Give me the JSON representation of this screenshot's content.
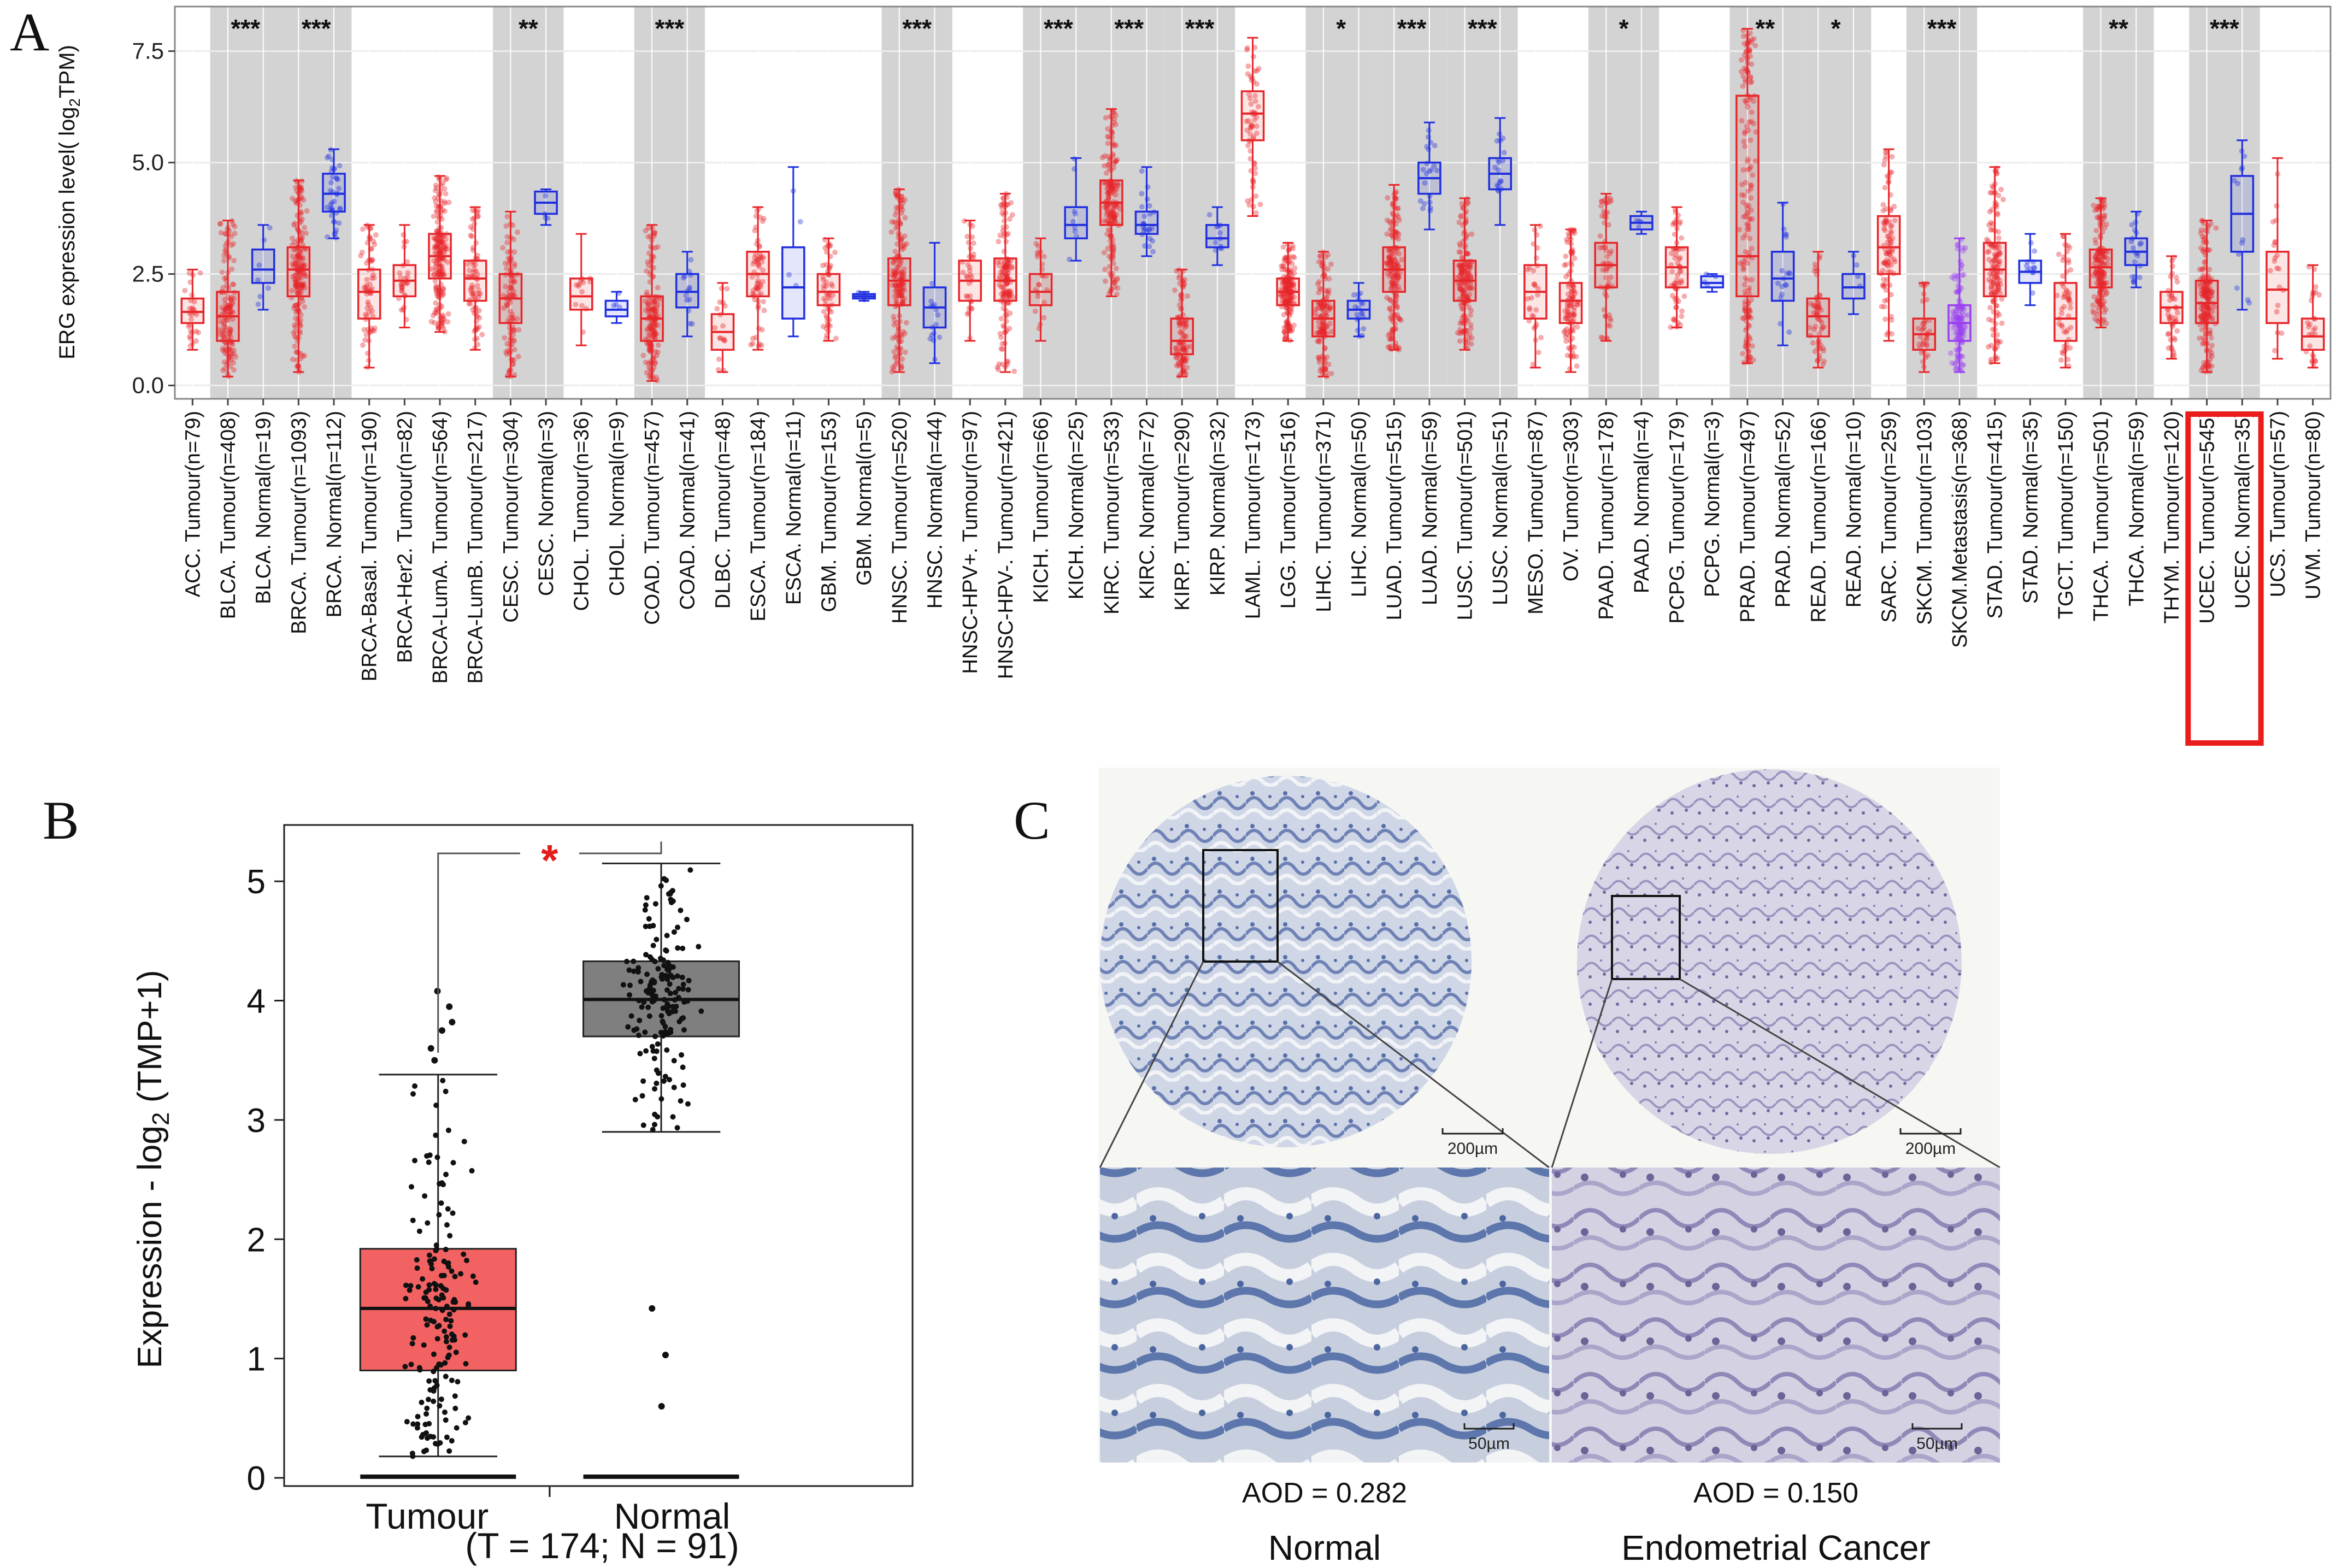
{
  "panel_labels": [
    "A",
    "B",
    "C"
  ],
  "chart_data": [
    {
      "type": "box",
      "panel": "A",
      "ylabel": "ERG expression level( log2TPM)",
      "ylabel_parts": {
        "pre": "ERG expression level( log",
        "sub": "2",
        "post": "TPM)"
      },
      "ylim": [
        -0.3,
        8.5
      ],
      "yticks": [
        0.0,
        2.5,
        5.0,
        7.5
      ],
      "ytick_labels": [
        "0.0",
        "2.5",
        "5.0",
        "7.5"
      ],
      "grid": true,
      "highlight_box": [
        "UCEC. Tumour(n=545)",
        "UCEC. Normal(n=35)"
      ],
      "groups": [
        {
          "shaded": false,
          "sig": ""
        },
        {
          "shaded": true,
          "sig": "***"
        },
        {
          "shaded": true,
          "sig": "***"
        },
        {
          "shaded": false,
          "sig": ""
        },
        {
          "shaded": true,
          "sig": "**"
        },
        {
          "shaded": false,
          "sig": ""
        },
        {
          "shaded": true,
          "sig": "***"
        },
        {
          "shaded": false,
          "sig": ""
        },
        {
          "shaded": false,
          "sig": ""
        },
        {
          "shaded": false,
          "sig": ""
        },
        {
          "shaded": true,
          "sig": "***"
        },
        {
          "shaded": false,
          "sig": ""
        },
        {
          "shaded": true,
          "sig": "***"
        },
        {
          "shaded": true,
          "sig": "***"
        },
        {
          "shaded": true,
          "sig": "***"
        },
        {
          "shaded": false,
          "sig": ""
        },
        {
          "shaded": false,
          "sig": ""
        },
        {
          "shaded": true,
          "sig": "*"
        },
        {
          "shaded": true,
          "sig": "***"
        },
        {
          "shaded": true,
          "sig": "***"
        },
        {
          "shaded": false,
          "sig": ""
        },
        {
          "shaded": false,
          "sig": ""
        },
        {
          "shaded": true,
          "sig": "*"
        },
        {
          "shaded": false,
          "sig": ""
        },
        {
          "shaded": true,
          "sig": "**"
        },
        {
          "shaded": true,
          "sig": "*"
        },
        {
          "shaded": false,
          "sig": ""
        },
        {
          "shaded": true,
          "sig": "***"
        },
        {
          "shaded": false,
          "sig": ""
        },
        {
          "shaded": false,
          "sig": ""
        },
        {
          "shaded": true,
          "sig": "**"
        },
        {
          "shaded": false,
          "sig": ""
        },
        {
          "shaded": true,
          "sig": "***"
        },
        {
          "shaded": false,
          "sig": ""
        },
        {
          "shaded": false,
          "sig": ""
        }
      ],
      "categories": [
        {
          "label": "ACC. Tumour(n=79)",
          "group": 0,
          "type": "tumour",
          "q1": 1.4,
          "median": 1.65,
          "q3": 1.95,
          "min": 0.8,
          "max": 2.6
        },
        {
          "label": "BLCA. Tumour(n=408)",
          "group": 1,
          "type": "tumour",
          "q1": 1.0,
          "median": 1.55,
          "q3": 2.1,
          "min": 0.2,
          "max": 3.7
        },
        {
          "label": "BLCA. Normal(n=19)",
          "group": 1,
          "type": "normal",
          "q1": 2.3,
          "median": 2.6,
          "q3": 3.05,
          "min": 1.7,
          "max": 3.6
        },
        {
          "label": "BRCA. Tumour(n=1093)",
          "group": 2,
          "type": "tumour",
          "q1": 2.0,
          "median": 2.6,
          "q3": 3.1,
          "min": 0.3,
          "max": 4.6
        },
        {
          "label": "BRCA. Normal(n=112)",
          "group": 2,
          "type": "normal",
          "q1": 3.9,
          "median": 4.3,
          "q3": 4.75,
          "min": 3.3,
          "max": 5.3
        },
        {
          "label": "BRCA-Basal. Tumour(n=190)",
          "group": 3,
          "type": "tumour",
          "q1": 1.5,
          "median": 2.1,
          "q3": 2.6,
          "min": 0.4,
          "max": 3.6
        },
        {
          "label": "BRCA-Her2. Tumour(n=82)",
          "group": 3,
          "type": "tumour",
          "q1": 2.0,
          "median": 2.35,
          "q3": 2.7,
          "min": 1.3,
          "max": 3.6
        },
        {
          "label": "BRCA-LumA. Tumour(n=564)",
          "group": 3,
          "type": "tumour",
          "q1": 2.4,
          "median": 2.9,
          "q3": 3.4,
          "min": 1.2,
          "max": 4.7
        },
        {
          "label": "BRCA-LumB. Tumour(n=217)",
          "group": 3,
          "type": "tumour",
          "q1": 1.9,
          "median": 2.4,
          "q3": 2.8,
          "min": 0.8,
          "max": 4.0
        },
        {
          "label": "CESC. Tumour(n=304)",
          "group": 4,
          "type": "tumour",
          "q1": 1.4,
          "median": 1.95,
          "q3": 2.5,
          "min": 0.2,
          "max": 3.9
        },
        {
          "label": "CESC. Normal(n=3)",
          "group": 4,
          "type": "normal",
          "q1": 3.85,
          "median": 4.1,
          "q3": 4.35,
          "min": 3.6,
          "max": 4.4
        },
        {
          "label": "CHOL. Tumour(n=36)",
          "group": 5,
          "type": "tumour",
          "q1": 1.7,
          "median": 2.0,
          "q3": 2.4,
          "min": 0.9,
          "max": 3.4
        },
        {
          "label": "CHOL. Normal(n=9)",
          "group": 5,
          "type": "normal",
          "q1": 1.55,
          "median": 1.7,
          "q3": 1.9,
          "min": 1.4,
          "max": 2.1
        },
        {
          "label": "COAD. Tumour(n=457)",
          "group": 6,
          "type": "tumour",
          "q1": 1.0,
          "median": 1.5,
          "q3": 2.0,
          "min": 0.1,
          "max": 3.6
        },
        {
          "label": "COAD. Normal(n=41)",
          "group": 6,
          "type": "normal",
          "q1": 1.75,
          "median": 2.1,
          "q3": 2.5,
          "min": 1.1,
          "max": 3.0
        },
        {
          "label": "DLBC. Tumour(n=48)",
          "group": 7,
          "type": "tumour",
          "q1": 0.8,
          "median": 1.2,
          "q3": 1.6,
          "min": 0.3,
          "max": 2.3
        },
        {
          "label": "ESCA. Tumour(n=184)",
          "group": 8,
          "type": "tumour",
          "q1": 2.0,
          "median": 2.5,
          "q3": 3.0,
          "min": 0.8,
          "max": 4.0
        },
        {
          "label": "ESCA. Normal(n=11)",
          "group": 8,
          "type": "normal",
          "q1": 1.5,
          "median": 2.2,
          "q3": 3.1,
          "min": 1.1,
          "max": 4.9
        },
        {
          "label": "GBM. Tumour(n=153)",
          "group": 9,
          "type": "tumour",
          "q1": 1.8,
          "median": 2.1,
          "q3": 2.5,
          "min": 1.0,
          "max": 3.3
        },
        {
          "label": "GBM. Normal(n=5)",
          "group": 9,
          "type": "normal",
          "q1": 1.95,
          "median": 2.0,
          "q3": 2.05,
          "min": 1.9,
          "max": 2.1
        },
        {
          "label": "HNSC. Tumour(n=520)",
          "group": 10,
          "type": "tumour",
          "q1": 1.8,
          "median": 2.35,
          "q3": 2.85,
          "min": 0.3,
          "max": 4.4
        },
        {
          "label": "HNSC. Normal(n=44)",
          "group": 10,
          "type": "normal",
          "q1": 1.3,
          "median": 1.75,
          "q3": 2.2,
          "min": 0.5,
          "max": 3.2
        },
        {
          "label": "HNSC-HPV+. Tumour(n=97)",
          "group": 11,
          "type": "tumour",
          "q1": 1.9,
          "median": 2.35,
          "q3": 2.8,
          "min": 1.0,
          "max": 3.7
        },
        {
          "label": "HNSC-HPV-. Tumour(n=421)",
          "group": 11,
          "type": "tumour",
          "q1": 1.9,
          "median": 2.35,
          "q3": 2.85,
          "min": 0.3,
          "max": 4.3
        },
        {
          "label": "KICH. Tumour(n=66)",
          "group": 12,
          "type": "tumour",
          "q1": 1.8,
          "median": 2.1,
          "q3": 2.5,
          "min": 1.0,
          "max": 3.3
        },
        {
          "label": "KICH. Normal(n=25)",
          "group": 12,
          "type": "normal",
          "q1": 3.3,
          "median": 3.6,
          "q3": 4.0,
          "min": 2.8,
          "max": 5.1
        },
        {
          "label": "KIRC. Tumour(n=533)",
          "group": 13,
          "type": "tumour",
          "q1": 3.6,
          "median": 4.1,
          "q3": 4.6,
          "min": 2.0,
          "max": 6.2
        },
        {
          "label": "KIRC. Normal(n=72)",
          "group": 13,
          "type": "normal",
          "q1": 3.4,
          "median": 3.6,
          "q3": 3.9,
          "min": 2.9,
          "max": 4.9
        },
        {
          "label": "KIRP. Tumour(n=290)",
          "group": 14,
          "type": "tumour",
          "q1": 0.7,
          "median": 1.0,
          "q3": 1.5,
          "min": 0.2,
          "max": 2.6
        },
        {
          "label": "KIRP. Normal(n=32)",
          "group": 14,
          "type": "normal",
          "q1": 3.1,
          "median": 3.3,
          "q3": 3.6,
          "min": 2.7,
          "max": 4.0
        },
        {
          "label": "LAML. Tumour(n=173)",
          "group": 15,
          "type": "tumour",
          "q1": 5.5,
          "median": 6.1,
          "q3": 6.6,
          "min": 3.8,
          "max": 7.8
        },
        {
          "label": "LGG. Tumour(n=516)",
          "group": 16,
          "type": "tumour",
          "q1": 1.8,
          "median": 2.1,
          "q3": 2.4,
          "min": 1.0,
          "max": 3.2
        },
        {
          "label": "LIHC. Tumour(n=371)",
          "group": 17,
          "type": "tumour",
          "q1": 1.1,
          "median": 1.5,
          "q3": 1.9,
          "min": 0.2,
          "max": 3.0
        },
        {
          "label": "LIHC. Normal(n=50)",
          "group": 17,
          "type": "normal",
          "q1": 1.5,
          "median": 1.7,
          "q3": 1.9,
          "min": 1.1,
          "max": 2.3
        },
        {
          "label": "LUAD. Tumour(n=515)",
          "group": 18,
          "type": "tumour",
          "q1": 2.1,
          "median": 2.6,
          "q3": 3.1,
          "min": 0.8,
          "max": 4.5
        },
        {
          "label": "LUAD. Normal(n=59)",
          "group": 18,
          "type": "normal",
          "q1": 4.3,
          "median": 4.65,
          "q3": 5.0,
          "min": 3.5,
          "max": 5.9
        },
        {
          "label": "LUSC. Tumour(n=501)",
          "group": 19,
          "type": "tumour",
          "q1": 1.9,
          "median": 2.35,
          "q3": 2.8,
          "min": 0.8,
          "max": 4.2
        },
        {
          "label": "LUSC. Normal(n=51)",
          "group": 19,
          "type": "normal",
          "q1": 4.4,
          "median": 4.75,
          "q3": 5.1,
          "min": 3.6,
          "max": 6.0
        },
        {
          "label": "MESO. Tumour(n=87)",
          "group": 20,
          "type": "tumour",
          "q1": 1.5,
          "median": 2.1,
          "q3": 2.7,
          "min": 0.4,
          "max": 3.6
        },
        {
          "label": "OV. Tumor(n=303)",
          "group": 21,
          "type": "tumour",
          "q1": 1.4,
          "median": 1.9,
          "q3": 2.3,
          "min": 0.3,
          "max": 3.5
        },
        {
          "label": "PAAD. Tumour(n=178)",
          "group": 22,
          "type": "tumour",
          "q1": 2.2,
          "median": 2.7,
          "q3": 3.2,
          "min": 1.0,
          "max": 4.3
        },
        {
          "label": "PAAD. Normal(n=4)",
          "group": 22,
          "type": "normal",
          "q1": 3.5,
          "median": 3.65,
          "q3": 3.8,
          "min": 3.4,
          "max": 3.9
        },
        {
          "label": "PCPG. Tumour(n=179)",
          "group": 23,
          "type": "tumour",
          "q1": 2.2,
          "median": 2.65,
          "q3": 3.1,
          "min": 1.3,
          "max": 4.0
        },
        {
          "label": "PCPG. Normal(n=3)",
          "group": 23,
          "type": "normal",
          "q1": 2.2,
          "median": 2.3,
          "q3": 2.45,
          "min": 2.1,
          "max": 2.5
        },
        {
          "label": "PRAD. Tumour(n=497)",
          "group": 24,
          "type": "tumour",
          "q1": 2.0,
          "median": 2.9,
          "q3": 6.5,
          "min": 0.5,
          "max": 8.0
        },
        {
          "label": "PRAD. Normal(n=52)",
          "group": 24,
          "type": "normal",
          "q1": 1.9,
          "median": 2.4,
          "q3": 3.0,
          "min": 0.9,
          "max": 4.1
        },
        {
          "label": "READ. Tumour(n=166)",
          "group": 25,
          "type": "tumour",
          "q1": 1.1,
          "median": 1.55,
          "q3": 1.95,
          "min": 0.4,
          "max": 3.0
        },
        {
          "label": "READ. Normal(n=10)",
          "group": 25,
          "type": "normal",
          "q1": 1.95,
          "median": 2.2,
          "q3": 2.5,
          "min": 1.6,
          "max": 3.0
        },
        {
          "label": "SARC. Tumour(n=259)",
          "group": 26,
          "type": "tumour",
          "q1": 2.5,
          "median": 3.1,
          "q3": 3.8,
          "min": 1.0,
          "max": 5.3
        },
        {
          "label": "SKCM. Tumour(n=103)",
          "group": 27,
          "type": "tumour",
          "q1": 0.8,
          "median": 1.15,
          "q3": 1.5,
          "min": 0.3,
          "max": 2.3
        },
        {
          "label": "SKCM.Metastasis(n=368)",
          "group": 27,
          "type": "metastasis",
          "q1": 1.0,
          "median": 1.4,
          "q3": 1.8,
          "min": 0.3,
          "max": 3.3
        },
        {
          "label": "STAD. Tumour(n=415)",
          "group": 28,
          "type": "tumour",
          "q1": 2.0,
          "median": 2.6,
          "q3": 3.2,
          "min": 0.5,
          "max": 4.9
        },
        {
          "label": "STAD. Normal(n=35)",
          "group": 28,
          "type": "normal",
          "q1": 2.3,
          "median": 2.55,
          "q3": 2.8,
          "min": 1.8,
          "max": 3.4
        },
        {
          "label": "TGCT. Tumour(n=150)",
          "group": 29,
          "type": "tumour",
          "q1": 1.0,
          "median": 1.5,
          "q3": 2.3,
          "min": 0.4,
          "max": 3.4
        },
        {
          "label": "THCA. Tumour(n=501)",
          "group": 30,
          "type": "tumour",
          "q1": 2.2,
          "median": 2.65,
          "q3": 3.05,
          "min": 1.3,
          "max": 4.2
        },
        {
          "label": "THCA. Normal(n=59)",
          "group": 30,
          "type": "normal",
          "q1": 2.7,
          "median": 3.0,
          "q3": 3.3,
          "min": 2.2,
          "max": 3.9
        },
        {
          "label": "THYM. Tumour(n=120)",
          "group": 31,
          "type": "tumour",
          "q1": 1.4,
          "median": 1.75,
          "q3": 2.1,
          "min": 0.6,
          "max": 2.9
        },
        {
          "label": "UCEC. Tumour(n=545)",
          "group": 32,
          "type": "tumour",
          "q1": 1.4,
          "median": 1.85,
          "q3": 2.35,
          "min": 0.3,
          "max": 3.7
        },
        {
          "label": "UCEC. Normal(n=35)",
          "group": 32,
          "type": "normal",
          "q1": 3.0,
          "median": 3.85,
          "q3": 4.7,
          "min": 1.7,
          "max": 5.5
        },
        {
          "label": "UCS. Tumour(n=57)",
          "group": 33,
          "type": "tumour",
          "q1": 1.4,
          "median": 2.15,
          "q3": 3.0,
          "min": 0.6,
          "max": 5.1
        },
        {
          "label": "UVM. Tumour(n=80)",
          "group": 34,
          "type": "tumour",
          "q1": 0.8,
          "median": 1.1,
          "q3": 1.5,
          "min": 0.4,
          "max": 2.7
        }
      ],
      "colors": {
        "tumour": "#e8262a",
        "normal": "#1f2fe0",
        "metastasis": "#9a3ff2",
        "shade": "#d3d3d3"
      }
    },
    {
      "type": "box",
      "panel": "B",
      "ylabel": "Expression - log2 (TMP+1)",
      "ylabel_parts": {
        "pre": "Expression - log",
        "sub": "2",
        "post": " (TMP+1)"
      },
      "ylim": [
        0,
        5.5
      ],
      "yticks": [
        0,
        1,
        2,
        3,
        4,
        5
      ],
      "ytick_labels": [
        "0",
        "1",
        "2",
        "3",
        "4",
        "5"
      ],
      "significance": "*",
      "xlabel_note": "(T = 174; N = 91)",
      "categories": [
        {
          "label": "Tumour",
          "q1": 0.9,
          "median": 1.42,
          "q3": 1.92,
          "min": 0.18,
          "max": 3.38,
          "color": "#f36262"
        },
        {
          "label": "Normal",
          "q1": 3.7,
          "median": 4.01,
          "q3": 4.33,
          "min": 2.9,
          "max": 5.15,
          "color": "#7f7f7f"
        }
      ],
      "outliers": {
        "Tumour": [
          3.5,
          3.6,
          3.75,
          3.82,
          3.95,
          4.08
        ],
        "Normal": [
          1.42,
          1.03,
          0.6
        ]
      }
    }
  ],
  "panel_c": {
    "images": [
      {
        "title": "Normal",
        "aod": "AOD = 0.282",
        "scale_overview": "200µm",
        "scale_zoom": "50µm"
      },
      {
        "title": "Endometrial Cancer",
        "aod": "AOD = 0.150",
        "scale_overview": "200µm",
        "scale_zoom": "50µm"
      }
    ]
  }
}
